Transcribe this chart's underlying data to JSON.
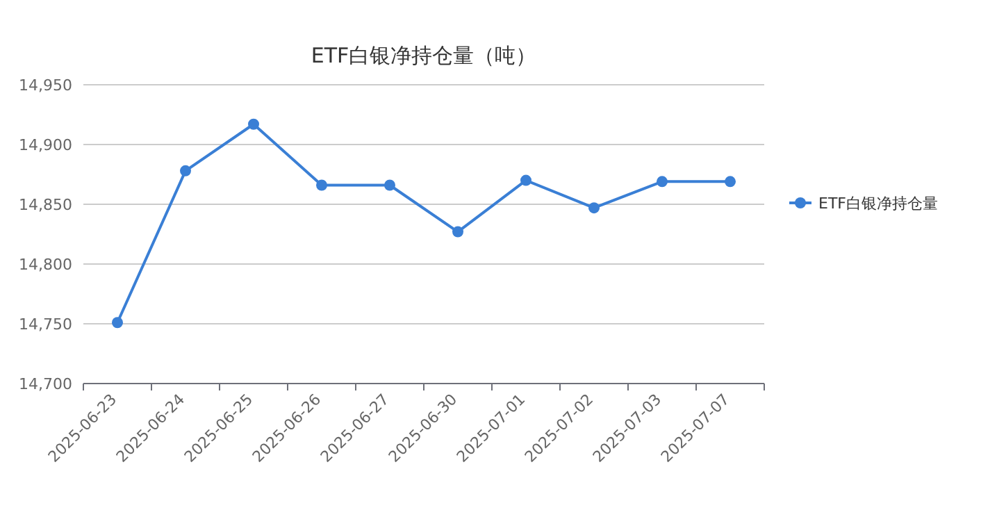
{
  "chart_data": {
    "type": "line",
    "title": "ETF白银净持仓量（吨）",
    "categories": [
      "2025-06-23",
      "2025-06-24",
      "2025-06-25",
      "2025-06-26",
      "2025-06-27",
      "2025-06-30",
      "2025-07-01",
      "2025-07-02",
      "2025-07-03",
      "2025-07-07"
    ],
    "series": [
      {
        "name": "ETF白银净持仓量",
        "color": "#3a7fd5",
        "values": [
          14751,
          14878,
          14917,
          14866,
          14866,
          14827,
          14870,
          14847,
          14869,
          14869
        ]
      }
    ],
    "ylim": [
      14700,
      14950
    ],
    "yticks": [
      {
        "value": 14700,
        "label": "14,700"
      },
      {
        "value": 14750,
        "label": "14,750"
      },
      {
        "value": 14800,
        "label": "14,800"
      },
      {
        "value": 14850,
        "label": "14,850"
      },
      {
        "value": 14900,
        "label": "14,900"
      },
      {
        "value": 14950,
        "label": "14,950"
      }
    ],
    "grid": "y",
    "legend": "right",
    "marker": "circle"
  }
}
